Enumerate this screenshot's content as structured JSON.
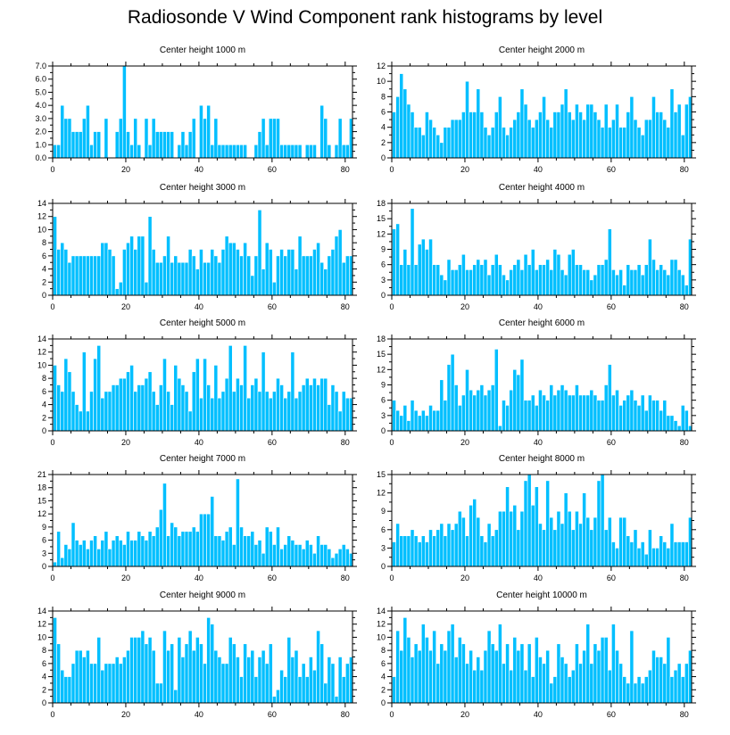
{
  "title": "Radiosonde V Wind Component rank histograms by level",
  "chart_data": [
    {
      "type": "bar",
      "title": "Center height 1000 m",
      "ylim": [
        0,
        7
      ],
      "yticks": [
        "0.0",
        "1.0",
        "2.0",
        "3.0",
        "4.0",
        "5.0",
        "6.0",
        "7.0"
      ],
      "ytick_values": [
        0,
        1,
        2,
        3,
        4,
        5,
        6,
        7
      ],
      "xlim": [
        0,
        82
      ],
      "xticks": [
        "0",
        "20",
        "40",
        "60",
        "80"
      ],
      "xtick_values": [
        0,
        20,
        40,
        60,
        80
      ],
      "values": [
        1,
        1,
        4,
        3,
        3,
        2,
        2,
        2,
        3,
        4,
        1,
        2,
        2,
        0,
        3,
        0,
        0,
        2,
        3,
        7,
        2,
        1,
        3,
        1,
        0,
        3,
        1,
        3,
        2,
        2,
        2,
        2,
        2,
        0,
        1,
        2,
        1,
        2,
        3,
        0,
        4,
        3,
        4,
        1,
        3,
        1,
        1,
        1,
        1,
        1,
        1,
        1,
        1,
        0,
        0,
        1,
        2,
        3,
        1,
        3,
        3,
        3,
        1,
        1,
        1,
        1,
        1,
        1,
        0,
        1,
        1,
        1,
        0,
        4,
        3,
        1,
        0,
        1,
        3,
        1,
        1,
        3
      ]
    },
    {
      "type": "bar",
      "title": "Center height 2000 m",
      "ylim": [
        0,
        12
      ],
      "yticks": [
        "0",
        "2",
        "4",
        "6",
        "8",
        "10",
        "12"
      ],
      "ytick_values": [
        0,
        2,
        4,
        6,
        8,
        10,
        12
      ],
      "xlim": [
        0,
        82
      ],
      "xticks": [
        "0",
        "20",
        "40",
        "60",
        "80"
      ],
      "xtick_values": [
        0,
        20,
        40,
        60,
        80
      ],
      "values": [
        6,
        8,
        11,
        9,
        7,
        6,
        4,
        4,
        3,
        6,
        5,
        4,
        3,
        2,
        4,
        4,
        5,
        5,
        5,
        6,
        10,
        6,
        6,
        9,
        6,
        4,
        3,
        4,
        6,
        8,
        4,
        3,
        4,
        5,
        6,
        9,
        7,
        5,
        4,
        5,
        6,
        8,
        5,
        4,
        6,
        6,
        7,
        9,
        6,
        5,
        7,
        6,
        5,
        7,
        7,
        6,
        5,
        4,
        7,
        4,
        5,
        7,
        4,
        4,
        6,
        8,
        5,
        4,
        3,
        5,
        5,
        8,
        6,
        6,
        5,
        4,
        9,
        6,
        7,
        3,
        7,
        8
      ]
    },
    {
      "type": "bar",
      "title": "Center height 3000 m",
      "ylim": [
        0,
        14
      ],
      "yticks": [
        "0",
        "2",
        "4",
        "6",
        "8",
        "10",
        "12",
        "14"
      ],
      "ytick_values": [
        0,
        2,
        4,
        6,
        8,
        10,
        12,
        14
      ],
      "xlim": [
        0,
        82
      ],
      "xticks": [
        "0",
        "20",
        "40",
        "60",
        "80"
      ],
      "xtick_values": [
        0,
        20,
        40,
        60,
        80
      ],
      "values": [
        12,
        7,
        8,
        7,
        5,
        6,
        6,
        6,
        6,
        6,
        6,
        6,
        6,
        8,
        8,
        7,
        6,
        1,
        2,
        7,
        8,
        9,
        7,
        9,
        9,
        2,
        12,
        7,
        5,
        5,
        6,
        9,
        5,
        6,
        5,
        5,
        5,
        7,
        6,
        4,
        7,
        5,
        5,
        7,
        6,
        5,
        7,
        9,
        8,
        8,
        7,
        6,
        8,
        6,
        3,
        6,
        13,
        4,
        8,
        7,
        2,
        6,
        7,
        6,
        7,
        7,
        4,
        9,
        6,
        6,
        6,
        7,
        8,
        5,
        4,
        6,
        7,
        9,
        10,
        5,
        6,
        6
      ]
    },
    {
      "type": "bar",
      "title": "Center height 4000 m",
      "ylim": [
        0,
        18
      ],
      "yticks": [
        "0",
        "3",
        "6",
        "9",
        "12",
        "15",
        "18"
      ],
      "ytick_values": [
        0,
        3,
        6,
        9,
        12,
        15,
        18
      ],
      "xlim": [
        0,
        82
      ],
      "xticks": [
        "0",
        "20",
        "40",
        "60",
        "80"
      ],
      "xtick_values": [
        0,
        20,
        40,
        60,
        80
      ],
      "values": [
        13,
        14,
        6,
        9,
        6,
        17,
        6,
        10,
        11,
        9,
        11,
        6,
        6,
        4,
        3,
        7,
        5,
        5,
        6,
        8,
        5,
        5,
        6,
        7,
        6,
        7,
        4,
        6,
        8,
        6,
        4,
        3,
        5,
        6,
        7,
        5,
        8,
        6,
        9,
        5,
        6,
        6,
        7,
        5,
        9,
        8,
        5,
        4,
        8,
        9,
        6,
        6,
        5,
        5,
        3,
        4,
        6,
        6,
        7,
        13,
        5,
        4,
        5,
        2,
        6,
        5,
        5,
        6,
        4,
        6,
        11,
        7,
        5,
        6,
        5,
        4,
        7,
        7,
        5,
        4,
        2,
        11
      ]
    },
    {
      "type": "bar",
      "title": "Center height 5000 m",
      "ylim": [
        0,
        14
      ],
      "yticks": [
        "0",
        "2",
        "4",
        "6",
        "8",
        "10",
        "12",
        "14"
      ],
      "ytick_values": [
        0,
        2,
        4,
        6,
        8,
        10,
        12,
        14
      ],
      "xlim": [
        0,
        82
      ],
      "xticks": [
        "0",
        "20",
        "40",
        "60",
        "80"
      ],
      "xtick_values": [
        0,
        20,
        40,
        60,
        80
      ],
      "values": [
        10,
        7,
        6,
        11,
        9,
        6,
        4,
        3,
        12,
        3,
        6,
        11,
        13,
        5,
        6,
        6,
        7,
        7,
        8,
        8,
        9,
        10,
        6,
        7,
        7,
        8,
        9,
        6,
        4,
        7,
        11,
        6,
        4,
        10,
        8,
        7,
        6,
        3,
        9,
        11,
        5,
        11,
        7,
        5,
        10,
        5,
        6,
        8,
        13,
        6,
        8,
        7,
        13,
        5,
        7,
        8,
        6,
        12,
        6,
        5,
        6,
        8,
        7,
        5,
        6,
        12,
        5,
        6,
        7,
        8,
        7,
        8,
        7,
        8,
        8,
        4,
        7,
        6,
        3,
        6,
        5,
        5
      ]
    },
    {
      "type": "bar",
      "title": "Center height 6000 m",
      "ylim": [
        0,
        18
      ],
      "yticks": [
        "0",
        "3",
        "6",
        "9",
        "12",
        "15",
        "18"
      ],
      "ytick_values": [
        0,
        3,
        6,
        9,
        12,
        15,
        18
      ],
      "xlim": [
        0,
        82
      ],
      "xticks": [
        "0",
        "20",
        "40",
        "60",
        "80"
      ],
      "xtick_values": [
        0,
        20,
        40,
        60,
        80
      ],
      "values": [
        6,
        4,
        3,
        5,
        2,
        6,
        4,
        3,
        4,
        3,
        5,
        4,
        4,
        10,
        6,
        13,
        15,
        9,
        5,
        7,
        12,
        8,
        7,
        8,
        9,
        7,
        8,
        9,
        16,
        1,
        6,
        5,
        8,
        12,
        11,
        14,
        6,
        6,
        7,
        5,
        8,
        7,
        6,
        9,
        7,
        8,
        9,
        8,
        7,
        7,
        9,
        7,
        7,
        7,
        8,
        7,
        6,
        6,
        9,
        13,
        7,
        8,
        5,
        6,
        7,
        8,
        6,
        5,
        7,
        4,
        7,
        6,
        6,
        4,
        6,
        3,
        3,
        2,
        1,
        5,
        4,
        1
      ]
    },
    {
      "type": "bar",
      "title": "Center height 7000 m",
      "ylim": [
        0,
        21
      ],
      "yticks": [
        "0",
        "3",
        "6",
        "9",
        "12",
        "15",
        "18",
        "21"
      ],
      "ytick_values": [
        0,
        3,
        6,
        9,
        12,
        15,
        18,
        21
      ],
      "xlim": [
        0,
        82
      ],
      "xticks": [
        "0",
        "20",
        "40",
        "60",
        "80"
      ],
      "xtick_values": [
        0,
        20,
        40,
        60,
        80
      ],
      "values": [
        1,
        8,
        2,
        5,
        4,
        10,
        6,
        5,
        6,
        4,
        6,
        7,
        4,
        6,
        8,
        4,
        6,
        7,
        6,
        5,
        8,
        6,
        6,
        8,
        7,
        6,
        8,
        7,
        9,
        13,
        19,
        7,
        10,
        9,
        7,
        8,
        8,
        8,
        9,
        8,
        12,
        12,
        12,
        16,
        7,
        7,
        6,
        8,
        9,
        5,
        20,
        9,
        7,
        7,
        8,
        5,
        6,
        3,
        9,
        8,
        5,
        9,
        4,
        5,
        7,
        6,
        5,
        5,
        4,
        6,
        5,
        3,
        7,
        5,
        5,
        4,
        2,
        3,
        4,
        5,
        4,
        3
      ]
    },
    {
      "type": "bar",
      "title": "Center height 8000 m",
      "ylim": [
        0,
        15
      ],
      "yticks": [
        "0",
        "3",
        "6",
        "9",
        "12",
        "15"
      ],
      "ytick_values": [
        0,
        3,
        6,
        9,
        12,
        15
      ],
      "xlim": [
        0,
        82
      ],
      "xticks": [
        "0",
        "20",
        "40",
        "60",
        "80"
      ],
      "xtick_values": [
        0,
        20,
        40,
        60,
        80
      ],
      "values": [
        4,
        7,
        5,
        5,
        5,
        6,
        5,
        4,
        5,
        4,
        6,
        5,
        6,
        7,
        5,
        7,
        6,
        7,
        9,
        8,
        5,
        10,
        11,
        8,
        5,
        4,
        7,
        5,
        6,
        9,
        9,
        13,
        9,
        10,
        6,
        9,
        14,
        15,
        10,
        13,
        7,
        6,
        14,
        8,
        6,
        9,
        7,
        12,
        9,
        6,
        9,
        7,
        12,
        8,
        6,
        8,
        14,
        15,
        6,
        8,
        4,
        3,
        8,
        8,
        5,
        4,
        6,
        3,
        4,
        2,
        6,
        3,
        3,
        5,
        4,
        3,
        7,
        4,
        4,
        4,
        4,
        8
      ]
    },
    {
      "type": "bar",
      "title": "Center height 9000 m",
      "ylim": [
        0,
        14
      ],
      "yticks": [
        "0",
        "2",
        "4",
        "6",
        "8",
        "10",
        "12",
        "14"
      ],
      "ytick_values": [
        0,
        2,
        4,
        6,
        8,
        10,
        12,
        14
      ],
      "xlim": [
        0,
        82
      ],
      "xticks": [
        "0",
        "20",
        "40",
        "60",
        "80"
      ],
      "xtick_values": [
        0,
        20,
        40,
        60,
        80
      ],
      "values": [
        13,
        9,
        5,
        4,
        4,
        6,
        8,
        8,
        7,
        8,
        6,
        6,
        10,
        5,
        6,
        6,
        6,
        7,
        6,
        7,
        8,
        10,
        10,
        10,
        11,
        9,
        10,
        8,
        3,
        3,
        11,
        8,
        9,
        2,
        10,
        7,
        9,
        11,
        8,
        10,
        9,
        6,
        13,
        12,
        8,
        7,
        6,
        6,
        10,
        9,
        7,
        4,
        9,
        7,
        8,
        4,
        7,
        8,
        6,
        9,
        1,
        2,
        5,
        4,
        10,
        7,
        8,
        4,
        6,
        4,
        7,
        5,
        11,
        9,
        3,
        7,
        6,
        1,
        7,
        4,
        6,
        7
      ]
    },
    {
      "type": "bar",
      "title": "Center height 10000 m",
      "ylim": [
        0,
        14
      ],
      "yticks": [
        "0",
        "2",
        "4",
        "6",
        "8",
        "10",
        "12",
        "14"
      ],
      "ytick_values": [
        0,
        2,
        4,
        6,
        8,
        10,
        12,
        14
      ],
      "xlim": [
        0,
        82
      ],
      "xticks": [
        "0",
        "20",
        "40",
        "60",
        "80"
      ],
      "xtick_values": [
        0,
        20,
        40,
        60,
        80
      ],
      "values": [
        4,
        11,
        8,
        13,
        10,
        7,
        9,
        8,
        12,
        10,
        8,
        11,
        6,
        9,
        8,
        11,
        12,
        7,
        10,
        9,
        6,
        8,
        5,
        7,
        5,
        8,
        11,
        9,
        8,
        12,
        6,
        9,
        5,
        10,
        8,
        9,
        5,
        9,
        4,
        10,
        7,
        6,
        8,
        3,
        4,
        9,
        7,
        6,
        4,
        5,
        9,
        6,
        8,
        12,
        6,
        9,
        8,
        10,
        10,
        5,
        12,
        8,
        6,
        4,
        3,
        11,
        3,
        4,
        3,
        4,
        5,
        8,
        7,
        7,
        6,
        10,
        4,
        5,
        6,
        4,
        6,
        8
      ]
    }
  ]
}
